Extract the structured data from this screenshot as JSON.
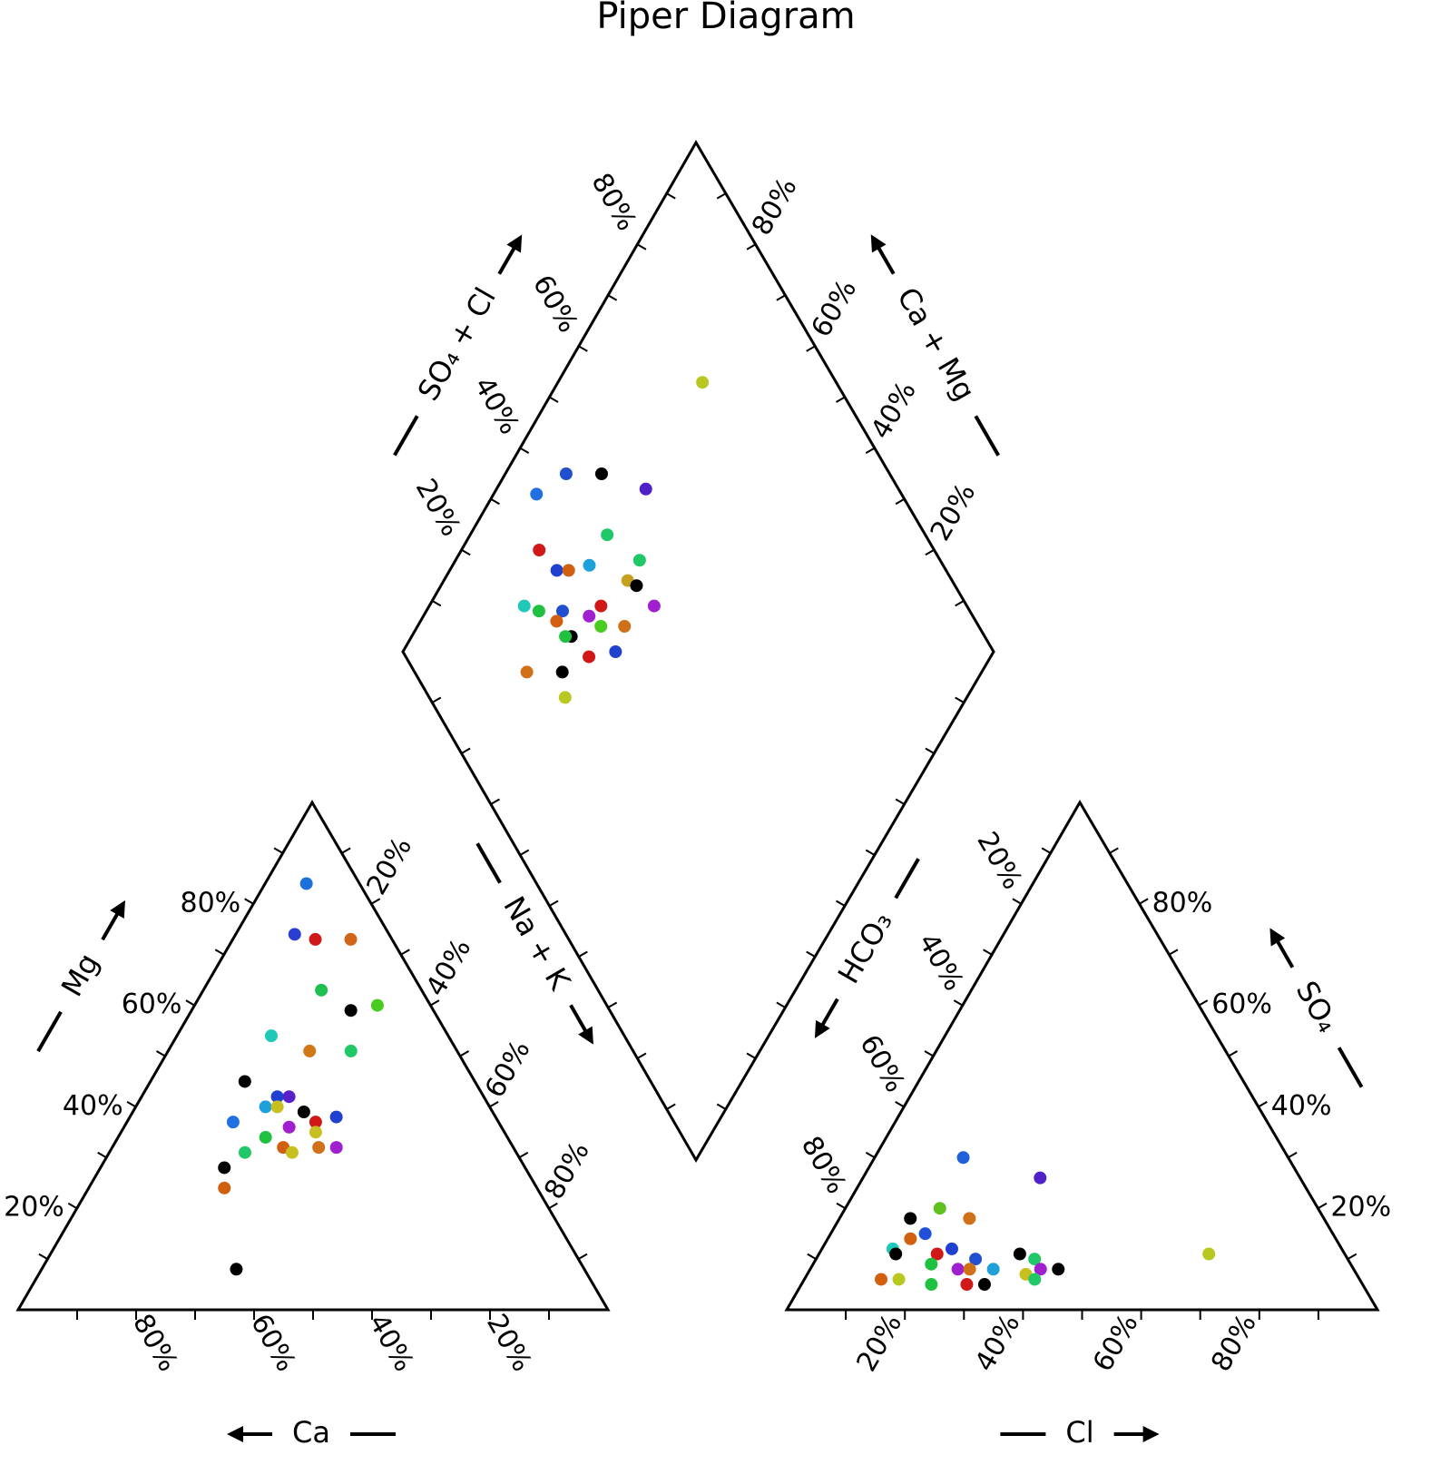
{
  "chart_data": {
    "type": "piper",
    "title": "Piper Diagram",
    "tick_labels": [
      {
        "value": 20,
        "label": "20%"
      },
      {
        "value": 40,
        "label": "40%"
      },
      {
        "value": 60,
        "label": "60%"
      },
      {
        "value": 80,
        "label": "80%"
      }
    ],
    "tick_marks": [
      10,
      30,
      50,
      70,
      90
    ],
    "cation": {
      "left_axis": "Mg",
      "bottom_axis": "Ca",
      "right_axis": "Na + K",
      "ca": [
        9,
        16,
        13,
        7,
        17,
        14,
        9,
        30,
        25,
        18,
        39,
        33,
        35,
        38,
        36,
        32,
        27,
        31,
        45,
        36,
        32,
        41,
        39,
        38,
        33,
        30,
        46,
        51,
        53,
        59
      ],
      "mg": [
        84,
        74,
        73,
        73,
        63,
        59,
        60,
        54,
        51,
        51,
        45,
        42,
        42,
        40,
        40,
        39,
        38,
        37,
        37,
        36,
        35,
        34,
        32,
        31,
        32,
        32,
        31,
        28,
        24,
        8
      ],
      "colors": [
        "#1f6fd8",
        "#2a3fd0",
        "#d01818",
        "#d0661a",
        "#20c050",
        "#000000",
        "#48cc20",
        "#20c8b8",
        "#d07818",
        "#20c868",
        "#000000",
        "#5a20c8",
        "#2040d0",
        "#20a0d8",
        "#c8c020",
        "#000000",
        "#2040d0",
        "#d01818",
        "#2070e0",
        "#a020d0",
        "#c8c020",
        "#20c040",
        "#d06010",
        "#c8c020",
        "#d07018",
        "#a020d0",
        "#20c868",
        "#000000",
        "#d06010",
        "#000000"
      ]
    },
    "anion": {
      "left_axis": "HCO₃",
      "bottom_axis": "Cl",
      "right_axis": "SO₄",
      "cl": [
        15,
        30,
        16,
        22,
        12,
        16,
        14,
        12,
        13,
        22,
        20,
        27,
        34,
        37,
        66,
        42,
        20,
        25,
        27,
        31,
        37,
        39,
        39,
        13,
        16,
        22,
        28,
        31
      ],
      "so4": [
        30,
        26,
        20,
        18,
        18,
        15,
        14,
        12,
        11,
        12,
        11,
        10,
        11,
        10,
        11,
        8,
        9,
        8,
        8,
        8,
        7,
        8,
        6,
        6,
        6,
        5,
        5,
        5
      ],
      "colors": [
        "#2060d8",
        "#5020c8",
        "#60c020",
        "#d07018",
        "#000000",
        "#2050d8",
        "#d06010",
        "#20c8b8",
        "#000000",
        "#2040d0",
        "#d01818",
        "#2050d0",
        "#000000",
        "#20c868",
        "#b8c820",
        "#000000",
        "#20c040",
        "#a020d0",
        "#d07018",
        "#20a0d8",
        "#c8c020",
        "#a020d0",
        "#20c868",
        "#d06010",
        "#b8c820",
        "#20c040",
        "#d01818",
        "#000000"
      ]
    },
    "diamond": {
      "left_axis": "SO₄ + Cl",
      "right_axis": "Ca + Mg",
      "so4_cl": [
        77,
        45,
        51,
        38,
        57,
        46,
        33,
        49,
        40,
        34,
        36,
        45,
        46,
        25,
        31,
        38,
        47,
        27,
        29,
        35,
        36,
        40,
        30,
        29,
        36,
        31,
        19,
        25,
        23
      ],
      "ca_mg": [
        76,
        90,
        84,
        93,
        75,
        77,
        87,
        69,
        77,
        82,
        80,
        69,
        67,
        84,
        77,
        71,
        62,
        81,
        77,
        72,
        69,
        65,
        73,
        74,
        64,
        68,
        77,
        71,
        68
      ],
      "colors": [
        "#b8c820",
        "#2050d0",
        "#000000",
        "#2070e0",
        "#5020c8",
        "#20c868",
        "#d01818",
        "#20c868",
        "#20a0d8",
        "#2040d0",
        "#d06010",
        "#c8a020",
        "#000000",
        "#20c8b8",
        "#2050d0",
        "#d01818",
        "#a020d0",
        "#20c040",
        "#d06010",
        "#a020d0",
        "#48cc20",
        "#d07018",
        "#000000",
        "#20c040",
        "#2040d0",
        "#d01818",
        "#d07018",
        "#000000",
        "#b8c820"
      ]
    }
  }
}
